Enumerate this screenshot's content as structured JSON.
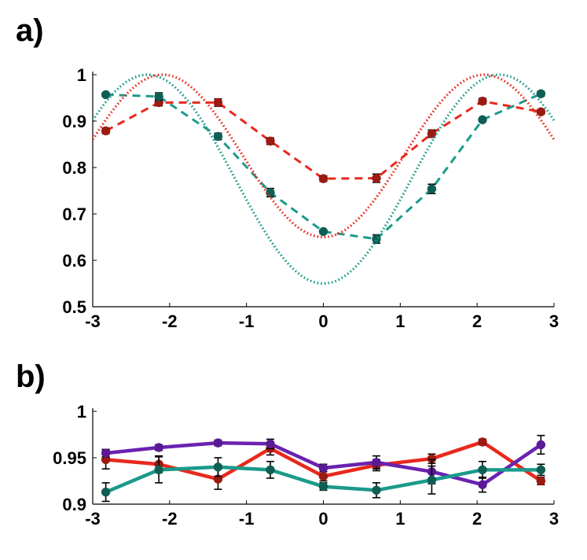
{
  "chart_data": [
    {
      "panel_label": "a)",
      "type": "line",
      "xlim": [
        -3,
        3
      ],
      "ylim": [
        0.5,
        1
      ],
      "xticks": [
        "-3",
        "-2",
        "-1",
        "0",
        "1",
        "2",
        "3"
      ],
      "yticks": [
        "0.5",
        "0.6",
        "0.7",
        "0.8",
        "0.9",
        "1"
      ],
      "grid": false,
      "series": [
        {
          "style": "dashed-with-markers",
          "color": "#e8291c",
          "marker_color": "#9b1a12",
          "x": [
            -2.83,
            -2.14,
            -1.37,
            -0.69,
            0.0,
            0.69,
            1.41,
            2.07,
            2.83
          ],
          "y": [
            0.879,
            0.94,
            0.94,
            0.857,
            0.776,
            0.777,
            0.873,
            0.943,
            0.92
          ],
          "err": [
            0.006,
            0.007,
            0.008,
            0.007,
            0.006,
            0.009,
            0.008,
            0.006,
            0.005
          ]
        },
        {
          "style": "dashed-with-markers",
          "color": "#1a9a8a",
          "marker_color": "#0f5e54",
          "x": [
            -2.83,
            -2.14,
            -1.37,
            -0.69,
            0.0,
            0.69,
            1.41,
            2.07,
            2.83
          ],
          "y": [
            0.957,
            0.953,
            0.867,
            0.746,
            0.662,
            0.646,
            0.754,
            0.903,
            0.959
          ],
          "err": [
            0.004,
            0.008,
            0.007,
            0.009,
            0.004,
            0.009,
            0.01,
            0.004,
            0.005
          ]
        },
        {
          "style": "dotted-curve",
          "color": "#e8291c",
          "model": "cosine",
          "center": 0.825,
          "amplitude": 0.175,
          "period": 4.18
        },
        {
          "style": "dotted-curve",
          "color": "#1a9a8a",
          "model": "cosine",
          "center": 0.775,
          "amplitude": 0.225,
          "period": 4.58
        }
      ]
    },
    {
      "panel_label": "b)",
      "type": "line",
      "xlim": [
        -3,
        3
      ],
      "ylim": [
        0.9,
        1
      ],
      "xticks": [
        "-3",
        "-2",
        "-1",
        "0",
        "1",
        "2",
        "3"
      ],
      "yticks": [
        "0.9",
        "0.95",
        "1"
      ],
      "grid": false,
      "series": [
        {
          "color": "#e8291c",
          "marker_color": "#9b1a12",
          "x": [
            -2.83,
            -2.14,
            -1.37,
            -0.69,
            0.0,
            0.69,
            1.41,
            2.07,
            2.83
          ],
          "y": [
            0.948,
            0.943,
            0.927,
            0.96,
            0.93,
            0.942,
            0.949,
            0.967,
            0.925
          ],
          "err": [
            0.01,
            0.009,
            0.011,
            0.007,
            0.005,
            0.006,
            0.005,
            0.003,
            0.004
          ]
        },
        {
          "color": "#6a22b0",
          "marker_color": "#5a1a96",
          "x": [
            -2.83,
            -2.14,
            -1.37,
            -0.69,
            0.0,
            0.69,
            1.41,
            2.07,
            2.83
          ],
          "y": [
            0.955,
            0.961,
            0.966,
            0.965,
            0.939,
            0.945,
            0.935,
            0.921,
            0.964
          ],
          "err": [
            0.004,
            0.003,
            0.003,
            0.005,
            0.004,
            0.007,
            0.013,
            0.008,
            0.01
          ]
        },
        {
          "color": "#1a9a8a",
          "marker_color": "#0f5e54",
          "x": [
            -2.83,
            -2.14,
            -1.37,
            -0.69,
            0.0,
            0.69,
            1.41,
            2.07,
            2.83
          ],
          "y": [
            0.913,
            0.937,
            0.94,
            0.937,
            0.919,
            0.915,
            0.926,
            0.937,
            0.937
          ],
          "err": [
            0.01,
            0.014,
            0.01,
            0.009,
            0.004,
            0.008,
            0.015,
            0.009,
            0.006
          ]
        }
      ]
    }
  ]
}
